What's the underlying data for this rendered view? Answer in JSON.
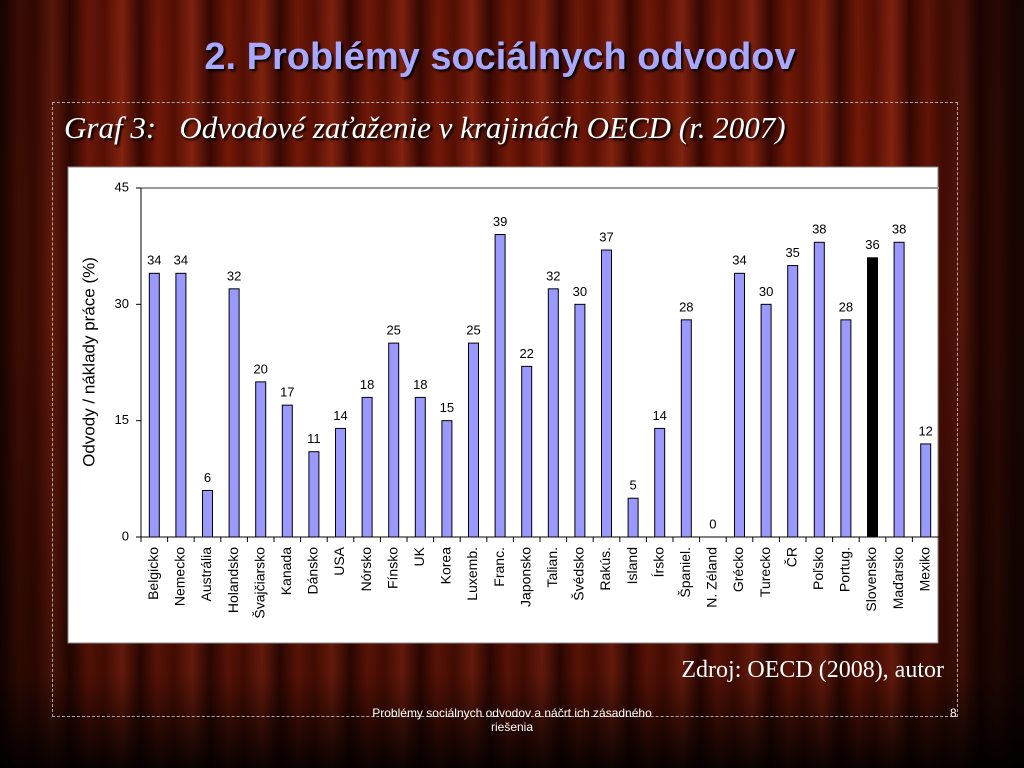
{
  "title": "2. Problémy sociálnych odvodov",
  "footer": {
    "text": "Problémy sociálnych odvodov a náčrt ich zásadného riešenia",
    "page": "8"
  },
  "source": "Zdroj: OECD (2008), autor",
  "chart_data": {
    "type": "bar",
    "title": "Graf 3:   Odvodové zaťaženie v krajinách OECD (r. 2007)",
    "y_label": "Odvody / náklady práce (%)",
    "categories": [
      "Belgicko",
      "Nemecko",
      "Austrália",
      "Holandsko",
      "Švajčiarsko",
      "Kanada",
      "Dánsko",
      "USA",
      "Nórsko",
      "Fínsko",
      "UK",
      "Korea",
      "Luxemb.",
      "Franc.",
      "Japonsko",
      "Talian.",
      "Švédsko",
      "Rakús.",
      "Island",
      "Írsko",
      "Španiel.",
      "N. Zéland",
      "Grécko",
      "Turecko",
      "ČR",
      "Poľsko",
      "Portug.",
      "Slovensko",
      "Maďarsko",
      "Mexiko"
    ],
    "values": [
      34,
      34,
      6,
      32,
      20,
      17,
      11,
      14,
      18,
      25,
      18,
      15,
      25,
      39,
      22,
      32,
      30,
      37,
      5,
      14,
      28,
      0,
      34,
      30,
      35,
      38,
      28,
      36,
      38,
      12
    ],
    "colors": [
      "#9999ff",
      "#9999ff",
      "#9999ff",
      "#9999ff",
      "#9999ff",
      "#9999ff",
      "#9999ff",
      "#9999ff",
      "#9999ff",
      "#9999ff",
      "#9999ff",
      "#9999ff",
      "#9999ff",
      "#9999ff",
      "#9999ff",
      "#9999ff",
      "#9999ff",
      "#9999ff",
      "#9999ff",
      "#9999ff",
      "#9999ff",
      "#9999ff",
      "#9999ff",
      "#9999ff",
      "#9999ff",
      "#9999ff",
      "#9999ff",
      "#000000",
      "#9999ff",
      "#9999ff"
    ],
    "ylim": [
      0,
      45
    ],
    "yticks": [
      0,
      15,
      30,
      45
    ],
    "grid": false
  }
}
